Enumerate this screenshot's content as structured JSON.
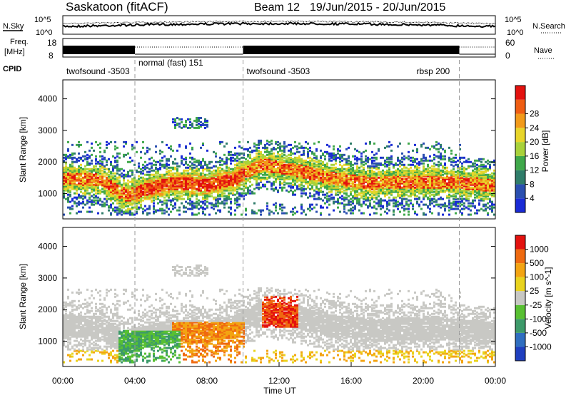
{
  "header": {
    "station": "Saskatoon (fitACF)",
    "beam": "Beam 12",
    "dates": "19/Jun/2015 - 20/Jun/2015"
  },
  "strip_labels": {
    "nsky": "N.Sky",
    "freq_top": "Freq.",
    "freq_unit": "[MHz]",
    "cpid": "CPID",
    "nsearch": "N.Search",
    "nave": "Nave"
  },
  "noise_axis": {
    "top": "10^5",
    "bottom": "10^0"
  },
  "freq_axis": {
    "ticks": [
      "18",
      "8"
    ],
    "right_ticks": [
      "60",
      "0"
    ]
  },
  "cpid_segments": [
    {
      "label": "twofsound -3503",
      "start_h": 0.0,
      "end_h": 4.0
    },
    {
      "label": "normal (fast) 151",
      "start_h": 4.0,
      "end_h": 10.0
    },
    {
      "label": "twofsound -3503",
      "start_h": 10.0,
      "end_h": 22.0
    },
    {
      "label": "rbsp 200",
      "start_h": 22.0,
      "end_h": 24.0
    }
  ],
  "chart_data": [
    {
      "type": "heatmap",
      "panel": "power",
      "ylabel": "Slant Range [km]",
      "xlabel": "",
      "xlim": [
        0,
        24
      ],
      "ylim": [
        200,
        4600
      ],
      "yticks": [
        1000,
        2000,
        3000,
        4000
      ],
      "colorbar": {
        "label": "Power [dB]",
        "ticks": [
          "4",
          "8",
          "12",
          "16",
          "20",
          "24",
          "28"
        ],
        "colors": [
          "#1a2bd6",
          "#2a4fb0",
          "#2f7d6a",
          "#3fa84a",
          "#a9d23a",
          "#e8d52a",
          "#f29a1a",
          "#ef5d12",
          "#e3120f"
        ]
      },
      "echo_band": {
        "description_points": [
          {
            "x": 0.5,
            "y": 1450
          },
          {
            "x": 2.0,
            "y": 1400
          },
          {
            "x": 3.5,
            "y": 900
          },
          {
            "x": 4.5,
            "y": 1100
          },
          {
            "x": 6.0,
            "y": 1300
          },
          {
            "x": 8.0,
            "y": 1250
          },
          {
            "x": 9.5,
            "y": 1450
          },
          {
            "x": 11.0,
            "y": 1900
          },
          {
            "x": 13.0,
            "y": 1700
          },
          {
            "x": 15.0,
            "y": 1450
          },
          {
            "x": 17.0,
            "y": 1300
          },
          {
            "x": 19.0,
            "y": 1350
          },
          {
            "x": 21.0,
            "y": 1350
          },
          {
            "x": 23.5,
            "y": 1250
          }
        ]
      }
    },
    {
      "type": "heatmap",
      "panel": "velocity",
      "ylabel": "Slant Range [km]",
      "xlabel": "Time UT",
      "xlim": [
        0,
        24
      ],
      "ylim": [
        200,
        4600
      ],
      "yticks": [
        1000,
        2000,
        3000,
        4000
      ],
      "xticks": [
        "00:00",
        "04:00",
        "08:00",
        "12:00",
        "16:00",
        "20:00",
        "00:00"
      ],
      "colorbar": {
        "label": "Velocity [m s^-1]",
        "ticks": [
          "1000",
          "500",
          "100",
          "25",
          "-25",
          "-100",
          "-500",
          "-1000"
        ],
        "colors": [
          "#1f3fbf",
          "#2f6ec0",
          "#3d9a6a",
          "#58c032",
          "#c8c8c4",
          "#e9d31e",
          "#f3a412",
          "#ef6a10",
          "#e3120f"
        ]
      }
    }
  ],
  "dashed_times_h": [
    4.0,
    10.0,
    22.0
  ]
}
